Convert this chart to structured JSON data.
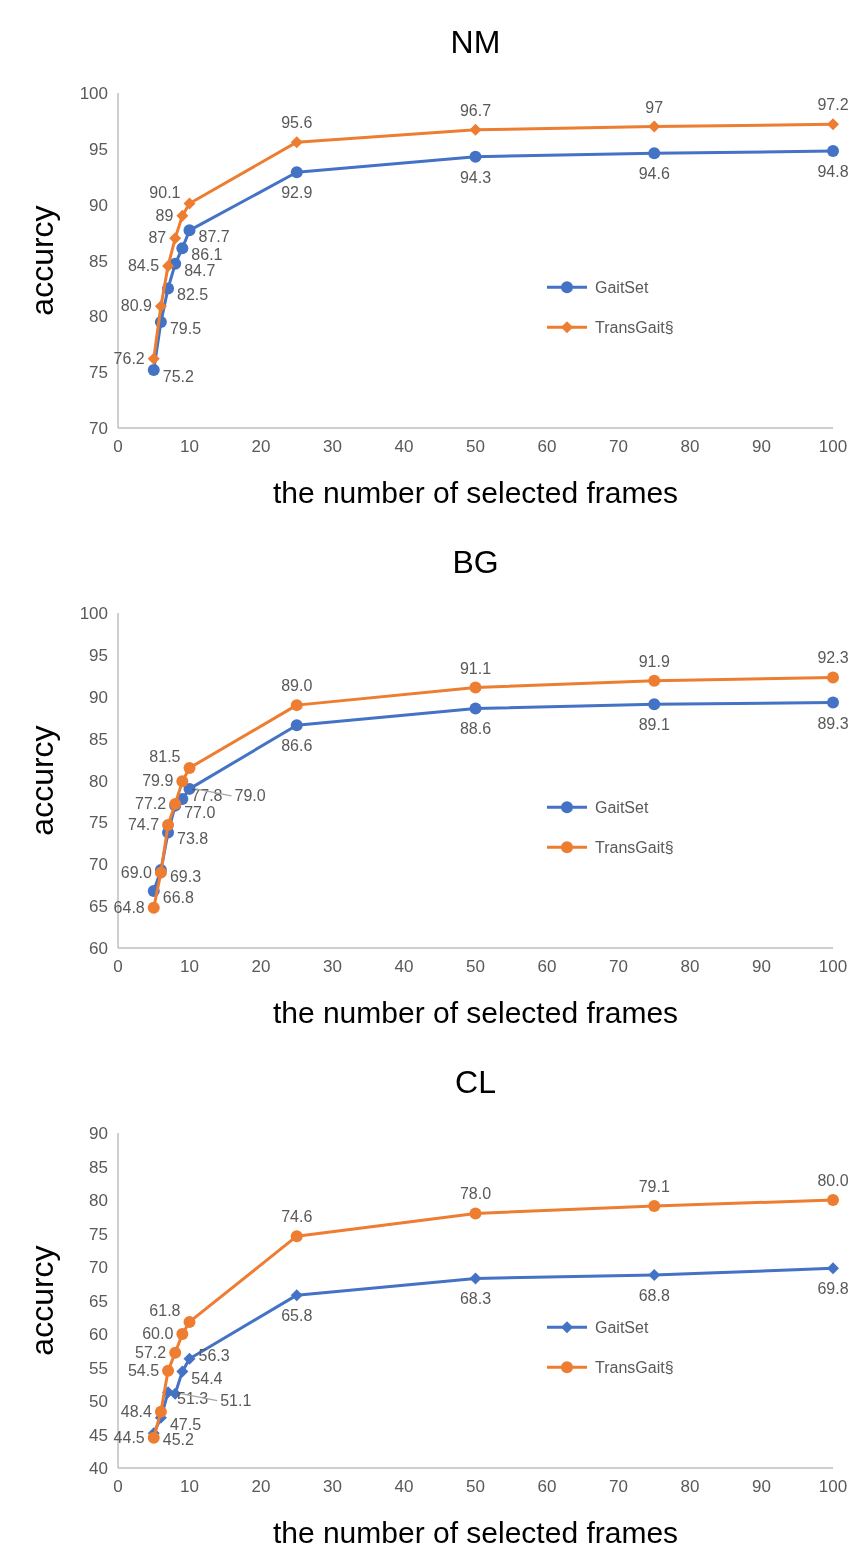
{
  "chart_data": [
    {
      "type": "line",
      "title": "NM",
      "xlabel": "the number of selected frames",
      "ylabel": "accurcy",
      "x": [
        5,
        6,
        7,
        8,
        9,
        10,
        25,
        50,
        75,
        100
      ],
      "xlim": [
        0,
        100
      ],
      "xticks": [
        0,
        10,
        20,
        30,
        40,
        50,
        60,
        70,
        80,
        90,
        100
      ],
      "ylim": [
        70,
        100
      ],
      "yticks": [
        70,
        75,
        80,
        85,
        90,
        95,
        100
      ],
      "grid": false,
      "legend": "right",
      "series": [
        {
          "name": "GaitSet",
          "color": "#4472c4",
          "marker": "circle",
          "values": [
            75.2,
            79.5,
            82.5,
            84.7,
            86.1,
            87.7,
            92.9,
            94.3,
            94.6,
            94.8
          ],
          "value_labels": [
            "75.2",
            "79.5",
            "82.5",
            "84.7",
            "86.1",
            "87.7",
            "92.9",
            "94.3",
            "94.6",
            "94.8"
          ]
        },
        {
          "name": "TransGait§",
          "color": "#ed7d31",
          "marker": "diamond",
          "values": [
            76.2,
            80.9,
            84.5,
            87,
            89,
            90.1,
            95.6,
            96.7,
            97,
            97.2
          ],
          "value_labels": [
            "76.2",
            "80.9",
            "84.5",
            "87",
            "89",
            "90.1",
            "95.6",
            "96.7",
            "97",
            "97.2"
          ]
        }
      ]
    },
    {
      "type": "line",
      "title": "BG",
      "xlabel": "the number of selected frames",
      "ylabel": "accurcy",
      "x": [
        5,
        6,
        7,
        8,
        9,
        10,
        25,
        50,
        75,
        100
      ],
      "xlim": [
        0,
        100
      ],
      "xticks": [
        0,
        10,
        20,
        30,
        40,
        50,
        60,
        70,
        80,
        90,
        100
      ],
      "ylim": [
        60,
        100
      ],
      "yticks": [
        60,
        65,
        70,
        75,
        80,
        85,
        90,
        95,
        100
      ],
      "grid": false,
      "legend": "right",
      "series": [
        {
          "name": "GaitSet",
          "color": "#4472c4",
          "marker": "circle",
          "values": [
            66.8,
            69.3,
            73.8,
            77.0,
            77.8,
            79.0,
            86.6,
            88.6,
            89.1,
            89.3
          ],
          "value_labels": [
            "66.8",
            "69.3",
            "73.8",
            "77.0",
            "77.8",
            "79.0",
            "86.6",
            "88.6",
            "89.1",
            "89.3"
          ]
        },
        {
          "name": "TransGait§",
          "color": "#ed7d31",
          "marker": "circle",
          "values": [
            64.8,
            69.0,
            74.7,
            77.2,
            79.9,
            81.5,
            89.0,
            91.1,
            91.9,
            92.3
          ],
          "value_labels": [
            "64.8",
            "69.0",
            "74.7",
            "77.2",
            "79.9",
            "81.5",
            "89.0",
            "91.1",
            "91.9",
            "92.3"
          ]
        }
      ]
    },
    {
      "type": "line",
      "title": "CL",
      "xlabel": "the number of selected frames",
      "ylabel": "accurcy",
      "x": [
        5,
        6,
        7,
        8,
        9,
        10,
        25,
        50,
        75,
        100
      ],
      "xlim": [
        0,
        100
      ],
      "xticks": [
        0,
        10,
        20,
        30,
        40,
        50,
        60,
        70,
        80,
        90,
        100
      ],
      "ylim": [
        40,
        90
      ],
      "yticks": [
        40,
        45,
        50,
        55,
        60,
        65,
        70,
        75,
        80,
        85,
        90
      ],
      "grid": false,
      "legend": "right",
      "series": [
        {
          "name": "GaitSet",
          "color": "#4472c4",
          "marker": "diamond",
          "values": [
            45.2,
            47.5,
            51.3,
            51.1,
            54.4,
            56.3,
            65.8,
            68.3,
            68.8,
            69.8
          ],
          "value_labels": [
            "45.2",
            "47.5",
            "51.3",
            "51.1",
            "54.4",
            "56.3",
            "65.8",
            "68.3",
            "68.8",
            "69.8"
          ]
        },
        {
          "name": "TransGait§",
          "color": "#ed7d31",
          "marker": "circle",
          "values": [
            44.5,
            48.4,
            54.5,
            57.2,
            60.0,
            61.8,
            74.6,
            78.0,
            79.1,
            80.0
          ],
          "value_labels": [
            "44.5",
            "48.4",
            "54.5",
            "57.2",
            "60.0",
            "61.8",
            "74.6",
            "78.0",
            "79.1",
            "80.0"
          ]
        }
      ]
    }
  ]
}
